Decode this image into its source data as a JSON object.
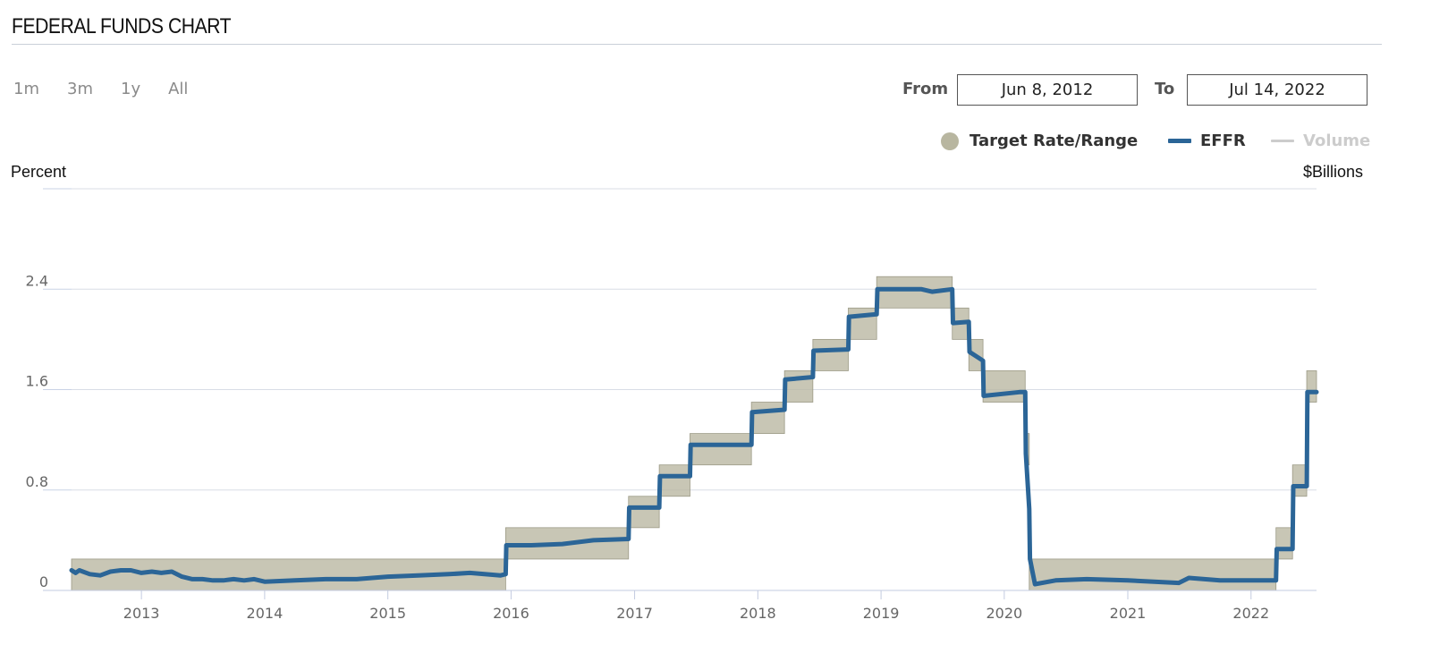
{
  "header": {
    "title": "FEDERAL FUNDS CHART"
  },
  "range_buttons": [
    "1m",
    "3m",
    "1y",
    "All"
  ],
  "date_range": {
    "from_label": "From",
    "from_value": "Jun 8, 2012",
    "to_label": "To",
    "to_value": "Jul 14, 2022"
  },
  "legend": [
    {
      "label": "Target Rate/Range",
      "color": "#b8b6a0",
      "enabled": true
    },
    {
      "label": "EFFR",
      "color": "#2b6597",
      "enabled": true
    },
    {
      "label": "Volume",
      "color": "#cccccc",
      "enabled": false
    }
  ],
  "chart_data": {
    "type": "line",
    "title": "FEDERAL FUNDS CHART",
    "ylabel": "Percent",
    "ylabel_right": "$Billions",
    "xlim": [
      "2012-06-08",
      "2022-07-14"
    ],
    "ylim": [
      0,
      3.2
    ],
    "y_ticks": [
      0,
      0.8,
      1.6,
      2.4
    ],
    "y_tick_labels": [
      "0",
      "0.8",
      "1.6",
      "2.4"
    ],
    "x_ticks": [
      "2013-01-01",
      "2014-01-01",
      "2015-01-01",
      "2016-01-01",
      "2017-01-01",
      "2018-01-01",
      "2019-01-01",
      "2020-01-01",
      "2021-01-01",
      "2022-01-01"
    ],
    "x_tick_labels": [
      "2013",
      "2014",
      "2015",
      "2016",
      "2017",
      "2018",
      "2019",
      "2020",
      "2021",
      "2022"
    ],
    "grid": true,
    "legend_position": "top-right",
    "target_range": [
      {
        "start": "2012-06-08",
        "end": "2015-12-16",
        "lower": 0.0,
        "upper": 0.25
      },
      {
        "start": "2015-12-16",
        "end": "2016-12-14",
        "lower": 0.25,
        "upper": 0.5
      },
      {
        "start": "2016-12-14",
        "end": "2017-03-15",
        "lower": 0.5,
        "upper": 0.75
      },
      {
        "start": "2017-03-15",
        "end": "2017-06-14",
        "lower": 0.75,
        "upper": 1.0
      },
      {
        "start": "2017-06-14",
        "end": "2017-12-13",
        "lower": 1.0,
        "upper": 1.25
      },
      {
        "start": "2017-12-13",
        "end": "2018-03-21",
        "lower": 1.25,
        "upper": 1.5
      },
      {
        "start": "2018-03-21",
        "end": "2018-06-13",
        "lower": 1.5,
        "upper": 1.75
      },
      {
        "start": "2018-06-13",
        "end": "2018-09-26",
        "lower": 1.75,
        "upper": 2.0
      },
      {
        "start": "2018-09-26",
        "end": "2018-12-19",
        "lower": 2.0,
        "upper": 2.25
      },
      {
        "start": "2018-12-19",
        "end": "2019-07-31",
        "lower": 2.25,
        "upper": 2.5
      },
      {
        "start": "2019-07-31",
        "end": "2019-09-18",
        "lower": 2.0,
        "upper": 2.25
      },
      {
        "start": "2019-09-18",
        "end": "2019-10-30",
        "lower": 1.75,
        "upper": 2.0
      },
      {
        "start": "2019-10-30",
        "end": "2020-03-03",
        "lower": 1.5,
        "upper": 1.75
      },
      {
        "start": "2020-03-03",
        "end": "2020-03-15",
        "lower": 1.0,
        "upper": 1.25
      },
      {
        "start": "2020-03-15",
        "end": "2022-03-16",
        "lower": 0.0,
        "upper": 0.25
      },
      {
        "start": "2022-03-16",
        "end": "2022-05-04",
        "lower": 0.25,
        "upper": 0.5
      },
      {
        "start": "2022-05-04",
        "end": "2022-06-15",
        "lower": 0.75,
        "upper": 1.0
      },
      {
        "start": "2022-06-15",
        "end": "2022-07-14",
        "lower": 1.5,
        "upper": 1.75
      }
    ],
    "series": [
      {
        "name": "EFFR",
        "points": [
          [
            "2012-06-08",
            0.16
          ],
          [
            "2012-06-20",
            0.14
          ],
          [
            "2012-07-01",
            0.16
          ],
          [
            "2012-08-01",
            0.13
          ],
          [
            "2012-09-01",
            0.12
          ],
          [
            "2012-10-01",
            0.15
          ],
          [
            "2012-11-01",
            0.16
          ],
          [
            "2012-12-01",
            0.16
          ],
          [
            "2013-01-01",
            0.14
          ],
          [
            "2013-02-01",
            0.15
          ],
          [
            "2013-03-01",
            0.14
          ],
          [
            "2013-04-01",
            0.15
          ],
          [
            "2013-05-01",
            0.11
          ],
          [
            "2013-06-01",
            0.09
          ],
          [
            "2013-07-01",
            0.09
          ],
          [
            "2013-08-01",
            0.08
          ],
          [
            "2013-09-01",
            0.08
          ],
          [
            "2013-10-01",
            0.09
          ],
          [
            "2013-11-01",
            0.08
          ],
          [
            "2013-12-01",
            0.09
          ],
          [
            "2014-01-01",
            0.07
          ],
          [
            "2014-04-01",
            0.08
          ],
          [
            "2014-07-01",
            0.09
          ],
          [
            "2014-10-01",
            0.09
          ],
          [
            "2015-01-01",
            0.11
          ],
          [
            "2015-04-01",
            0.12
          ],
          [
            "2015-07-01",
            0.13
          ],
          [
            "2015-09-01",
            0.14
          ],
          [
            "2015-12-01",
            0.12
          ],
          [
            "2015-12-16",
            0.13
          ],
          [
            "2015-12-18",
            0.36
          ],
          [
            "2016-01-15",
            0.36
          ],
          [
            "2016-03-01",
            0.36
          ],
          [
            "2016-06-01",
            0.37
          ],
          [
            "2016-09-01",
            0.4
          ],
          [
            "2016-12-14",
            0.41
          ],
          [
            "2016-12-16",
            0.66
          ],
          [
            "2017-01-15",
            0.66
          ],
          [
            "2017-03-15",
            0.66
          ],
          [
            "2017-03-17",
            0.91
          ],
          [
            "2017-06-14",
            0.91
          ],
          [
            "2017-06-16",
            1.16
          ],
          [
            "2017-12-13",
            1.16
          ],
          [
            "2017-12-15",
            1.42
          ],
          [
            "2018-03-21",
            1.44
          ],
          [
            "2018-03-23",
            1.68
          ],
          [
            "2018-06-13",
            1.7
          ],
          [
            "2018-06-15",
            1.91
          ],
          [
            "2018-09-26",
            1.92
          ],
          [
            "2018-09-28",
            2.18
          ],
          [
            "2018-12-19",
            2.2
          ],
          [
            "2018-12-21",
            2.4
          ],
          [
            "2019-03-01",
            2.4
          ],
          [
            "2019-05-01",
            2.4
          ],
          [
            "2019-06-01",
            2.38
          ],
          [
            "2019-07-31",
            2.4
          ],
          [
            "2019-08-02",
            2.13
          ],
          [
            "2019-09-18",
            2.14
          ],
          [
            "2019-09-20",
            1.9
          ],
          [
            "2019-10-30",
            1.83
          ],
          [
            "2019-11-01",
            1.55
          ],
          [
            "2020-02-15",
            1.58
          ],
          [
            "2020-03-03",
            1.58
          ],
          [
            "2020-03-05",
            1.09
          ],
          [
            "2020-03-15",
            0.65
          ],
          [
            "2020-03-17",
            0.25
          ],
          [
            "2020-04-01",
            0.05
          ],
          [
            "2020-06-01",
            0.08
          ],
          [
            "2020-09-01",
            0.09
          ],
          [
            "2021-01-01",
            0.08
          ],
          [
            "2021-06-01",
            0.06
          ],
          [
            "2021-07-01",
            0.1
          ],
          [
            "2021-10-01",
            0.08
          ],
          [
            "2022-01-01",
            0.08
          ],
          [
            "2022-03-16",
            0.08
          ],
          [
            "2022-03-18",
            0.33
          ],
          [
            "2022-05-04",
            0.33
          ],
          [
            "2022-05-06",
            0.83
          ],
          [
            "2022-06-15",
            0.83
          ],
          [
            "2022-06-17",
            1.58
          ],
          [
            "2022-07-14",
            1.58
          ]
        ]
      }
    ]
  }
}
